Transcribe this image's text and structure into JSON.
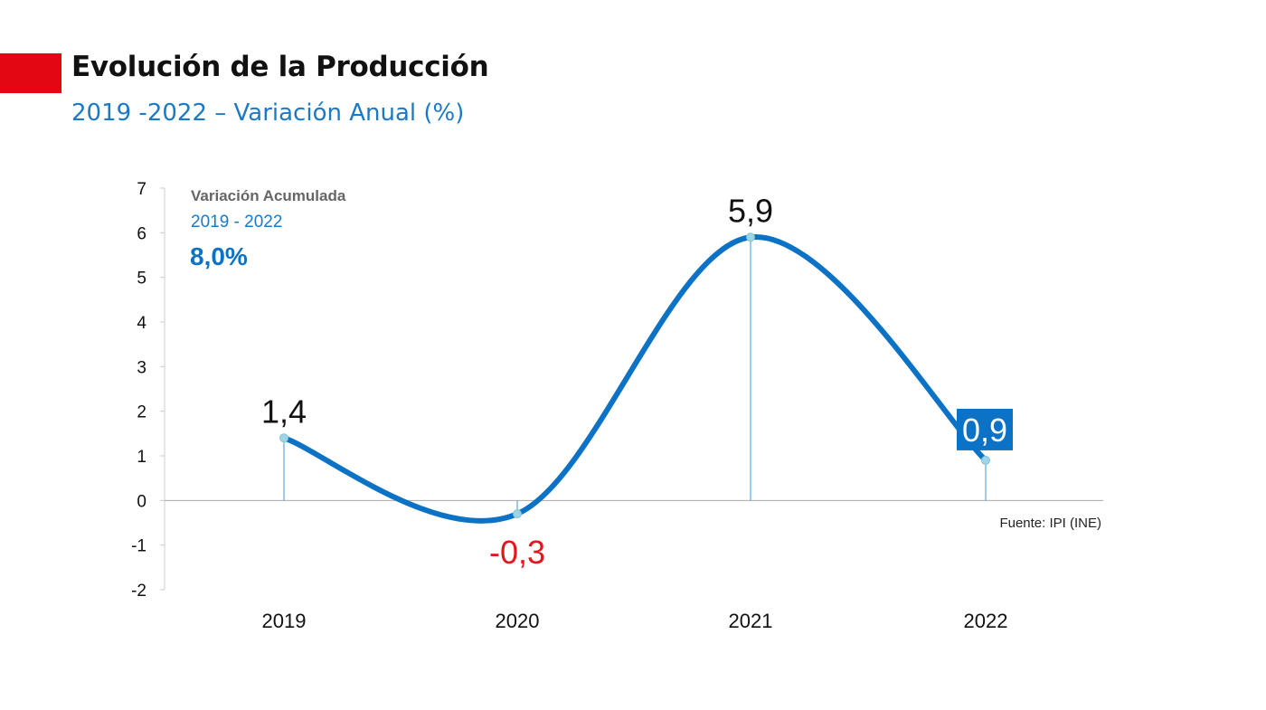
{
  "header": {
    "title": "Evolución de la Producción",
    "subtitle": "2019 -2022  – Variación Anual (%)"
  },
  "annotation": {
    "label": "Variación Acumulada",
    "period": "2019 - 2022",
    "value": "8,0%"
  },
  "source": "Fuente: IPI (INE)",
  "colors": {
    "accent": "#e30613",
    "line": "#0b72c5",
    "negative_label": "#e8141c",
    "highlight_bg": "#0b72c5",
    "marker": "#9fd4e4"
  },
  "chart_data": {
    "type": "line",
    "smooth": true,
    "categories": [
      "2019",
      "2020",
      "2021",
      "2022"
    ],
    "values": [
      1.4,
      -0.3,
      5.9,
      0.9
    ],
    "value_labels": [
      "1,4",
      "-0,3",
      "5,9",
      "0,9"
    ],
    "highlighted_label_index": 3,
    "negative_label_index": 1,
    "ylim": [
      -2,
      7
    ],
    "yticks": [
      -2,
      -1,
      0,
      1,
      2,
      3,
      4,
      5,
      6,
      7
    ],
    "grid": false,
    "legend": "none",
    "drop_lines": true
  }
}
